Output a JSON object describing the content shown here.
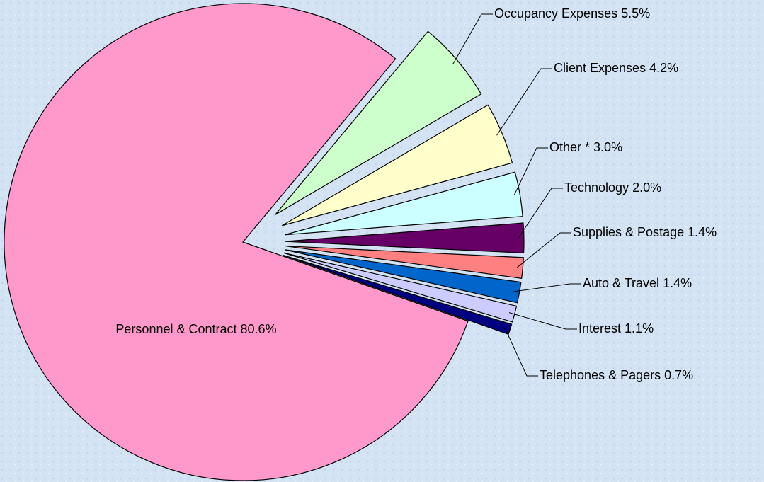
{
  "chart_data": {
    "type": "pie",
    "categories": [
      "Occupancy Expenses",
      "Client Expenses",
      "Other *",
      "Technology",
      "Supplies & Postage",
      "Auto & Travel",
      "Interest",
      "Telephones & Pagers",
      "Personnel & Contract"
    ],
    "values": [
      5.5,
      4.2,
      3.0,
      2.0,
      1.4,
      1.4,
      1.1,
      0.7,
      80.6
    ],
    "value_labels": [
      "5.5%",
      "4.2%",
      "3.0%",
      "2.0%",
      "1.4%",
      "1.4%",
      "1.1%",
      "0.7%",
      "80.6%"
    ],
    "colors": [
      "#ccffcc",
      "#ffffcc",
      "#ccffff",
      "#660066",
      "#ff8080",
      "#0066cc",
      "#ccccff",
      "#000080",
      "#ff99cc"
    ]
  }
}
